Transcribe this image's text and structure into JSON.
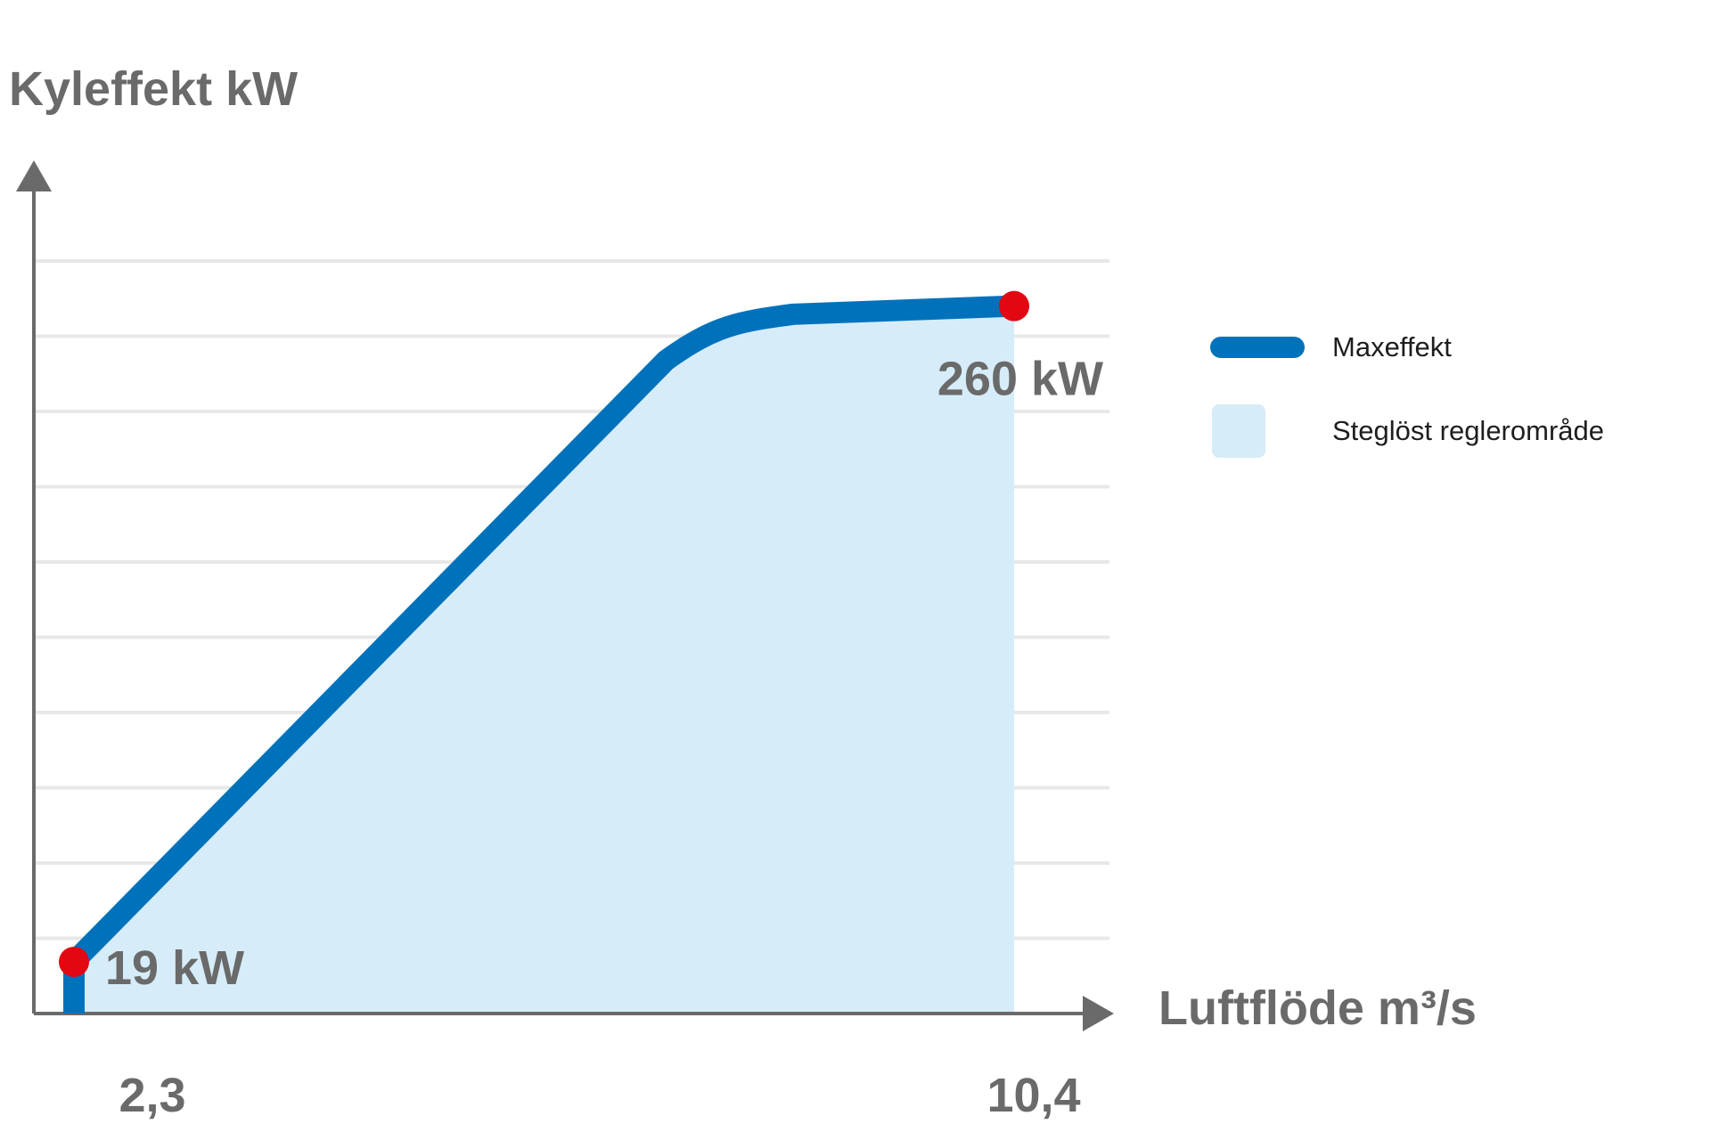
{
  "chart_data": {
    "type": "line",
    "ylabel": "Kyleffekt kW",
    "xlabel": "Luftflöde m³/s",
    "x_ticks": [
      "2,3",
      "10,4"
    ],
    "series": [
      {
        "name": "Maxeffekt",
        "x": [
          2.3,
          2.3,
          7.4,
          8.5,
          10.4
        ],
        "y": [
          0,
          19,
          240,
          257,
          260
        ]
      }
    ],
    "area": {
      "name": "Steglöst reglerområde",
      "x_range": [
        2.3,
        10.4
      ]
    },
    "markers": [
      {
        "x": 2.3,
        "y": 19,
        "label": "19 kW"
      },
      {
        "x": 10.4,
        "y": 260,
        "label": "260 kW"
      }
    ],
    "xlim": [
      2.0,
      10.8
    ],
    "ylim": [
      0,
      290
    ],
    "grid": true,
    "legend_position": "right"
  },
  "colors": {
    "line": "#0072bc",
    "area": "#d6ecf9",
    "marker": "#e30613",
    "axis": "#6a6a6a",
    "grid": "#e8e8e8"
  }
}
